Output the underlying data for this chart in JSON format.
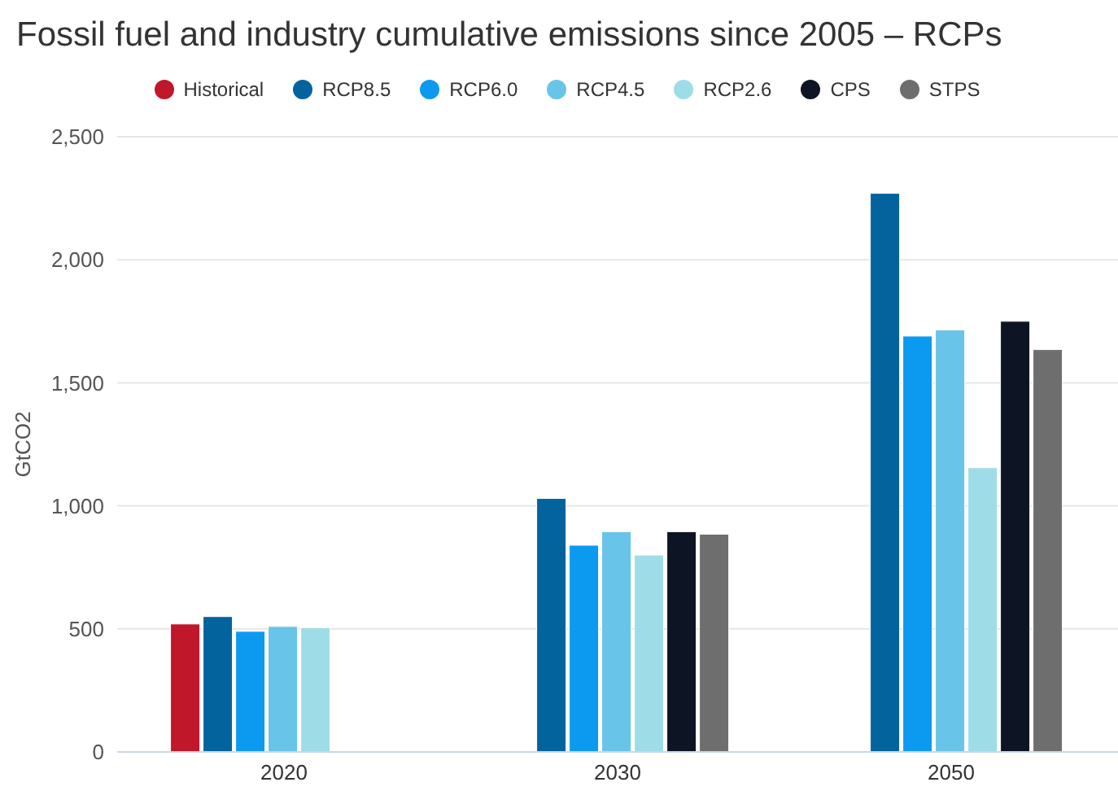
{
  "chart_data": {
    "type": "bar",
    "title": "Fossil fuel and industry cumulative emissions since 2005 – RCPs",
    "ylabel": "GtCO2",
    "categories": [
      "2020",
      "2030",
      "2050"
    ],
    "series": [
      {
        "name": "Historical",
        "color": "#c0172a",
        "values": [
          520,
          null,
          null
        ]
      },
      {
        "name": "RCP8.5",
        "color": "#02639d",
        "values": [
          550,
          1030,
          2270
        ]
      },
      {
        "name": "RCP6.0",
        "color": "#0c9af0",
        "values": [
          490,
          840,
          1690
        ]
      },
      {
        "name": "RCP4.5",
        "color": "#68c4e8",
        "values": [
          510,
          895,
          1715
        ]
      },
      {
        "name": "RCP2.6",
        "color": "#9edde8",
        "values": [
          505,
          800,
          1155
        ]
      },
      {
        "name": "CPS",
        "color": "#0d1524",
        "values": [
          null,
          895,
          1750
        ]
      },
      {
        "name": "STPS",
        "color": "#6e6e6e",
        "values": [
          null,
          885,
          1635
        ]
      }
    ],
    "ylim": [
      0,
      2500
    ],
    "yticks": [
      0,
      500,
      {
        "value": 1000,
        "label": "1,000"
      },
      {
        "value": 1500,
        "label": "1,500"
      },
      {
        "value": 2000,
        "label": "2,000"
      },
      {
        "value": 2500,
        "label": "2,500"
      }
    ],
    "grid": "y",
    "legend": "top"
  }
}
